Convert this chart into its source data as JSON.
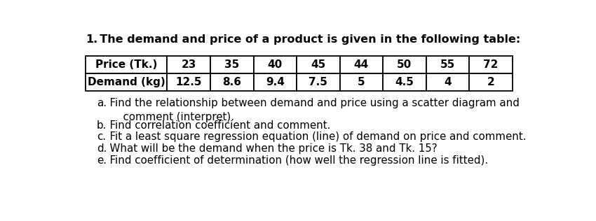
{
  "title_num": "1.",
  "title_text": "  The demand and price of a product is given in the following table:",
  "title_fontsize": 11.5,
  "table_headers": [
    "Price (Tk.)",
    "23",
    "35",
    "40",
    "45",
    "44",
    "50",
    "55",
    "72"
  ],
  "table_row2": [
    "Demand (kg)",
    "12.5",
    "8.6",
    "9.4",
    "7.5",
    "5",
    "4.5",
    "4",
    "2"
  ],
  "questions": [
    [
      "a.",
      "  Find the relationship between demand and price using a scatter diagram and\n      comment (interpret)."
    ],
    [
      "b.",
      "  Find correlation coefficient and comment."
    ],
    [
      "c.",
      "  Fit a least square regression equation (line) of demand on price and comment."
    ],
    [
      "d.",
      "  What will be the demand when the price is Tk. 38 and Tk. 15?"
    ],
    [
      "e.",
      "  Find coefficient of determination (how well the regression line is fitted)."
    ]
  ],
  "bg_color": "#ffffff",
  "text_color": "#000000",
  "table_border_color": "#000000",
  "question_fontsize": 10.8,
  "table_fontsize": 11.0,
  "col_widths_raw": [
    1.55,
    0.82,
    0.82,
    0.82,
    0.82,
    0.82,
    0.82,
    0.82,
    0.82
  ]
}
